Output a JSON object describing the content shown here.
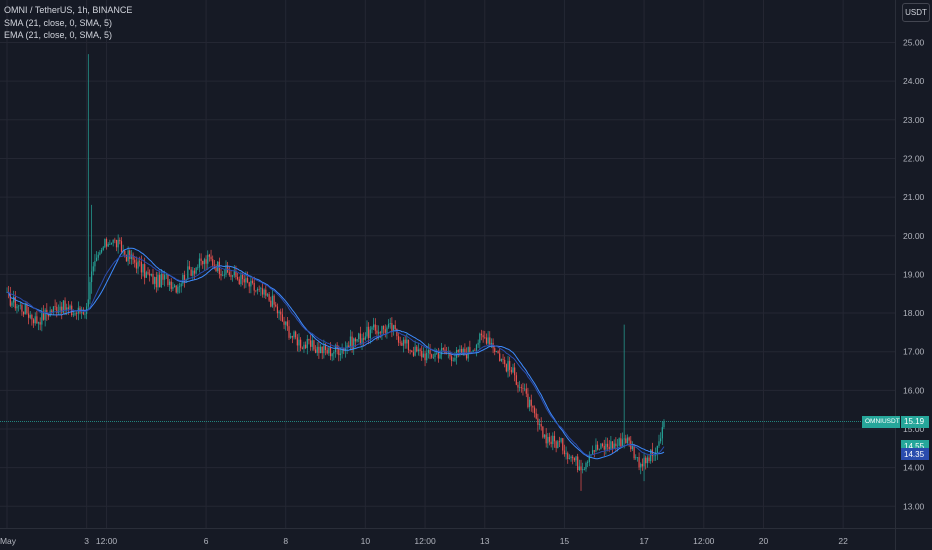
{
  "legend": {
    "symbol": "OMNI / TetherUS, 1h, BINANCE",
    "sma": "SMA (21, close, 0, SMA, 5)",
    "ema": "EMA (21, close, 0, SMA, 5)"
  },
  "currency_button": "USDT",
  "price_tags": {
    "symbol_label": "OMNIUSDT",
    "last_price": "15.19",
    "sma_value": "14.55",
    "ema_value": "14.35"
  },
  "colors": {
    "background": "#161a25",
    "grid": "#242733",
    "up": "#26a69a",
    "down": "#ef5350",
    "sma": "#3d8bfd",
    "ema": "#2a4cad",
    "last_line": "#26a69a"
  },
  "chart_data": {
    "type": "candlestick",
    "symbol": "OMNIUSDT",
    "interval": "1h",
    "exchange": "BINANCE",
    "y_ticks": [
      25.0,
      24.0,
      23.0,
      22.0,
      21.0,
      20.0,
      19.0,
      18.0,
      17.0,
      16.0,
      15.0,
      14.0,
      13.0
    ],
    "ylim": [
      12.3,
      25.6
    ],
    "x_ticks": [
      {
        "label": "May",
        "index": 0
      },
      {
        "label": "3",
        "index": 48
      },
      {
        "label": "12:00",
        "index": 60
      },
      {
        "label": "6",
        "index": 120
      },
      {
        "label": "8",
        "index": 168
      },
      {
        "label": "10",
        "index": 216
      },
      {
        "label": "12:00",
        "index": 252
      },
      {
        "label": "13",
        "index": 288
      },
      {
        "label": "15",
        "index": 336
      },
      {
        "label": "17",
        "index": 384
      },
      {
        "label": "12:00",
        "index": 420
      },
      {
        "label": "20",
        "index": 456
      },
      {
        "label": "22",
        "index": 504
      }
    ],
    "last_price": 15.19,
    "sma_last": 14.55,
    "ema_last": 14.35,
    "price_path": [
      [
        0,
        18.4
      ],
      [
        10,
        18.1
      ],
      [
        18,
        17.8
      ],
      [
        24,
        18.0
      ],
      [
        32,
        18.2
      ],
      [
        40,
        18.0
      ],
      [
        48,
        18.1
      ],
      [
        50,
        18.9
      ],
      [
        54,
        19.3
      ],
      [
        58,
        19.7
      ],
      [
        62,
        19.9
      ],
      [
        66,
        19.8
      ],
      [
        72,
        19.5
      ],
      [
        78,
        19.3
      ],
      [
        84,
        19.0
      ],
      [
        90,
        18.8
      ],
      [
        96,
        18.9
      ],
      [
        102,
        18.7
      ],
      [
        110,
        19.1
      ],
      [
        118,
        19.3
      ],
      [
        122,
        19.4
      ],
      [
        130,
        19.1
      ],
      [
        140,
        18.9
      ],
      [
        150,
        18.6
      ],
      [
        160,
        18.3
      ],
      [
        166,
        17.8
      ],
      [
        172,
        17.4
      ],
      [
        178,
        17.2
      ],
      [
        186,
        17.1
      ],
      [
        194,
        17.0
      ],
      [
        202,
        17.1
      ],
      [
        210,
        17.3
      ],
      [
        218,
        17.5
      ],
      [
        226,
        17.6
      ],
      [
        232,
        17.6
      ],
      [
        240,
        17.2
      ],
      [
        246,
        17.0
      ],
      [
        254,
        16.9
      ],
      [
        262,
        17.0
      ],
      [
        270,
        16.9
      ],
      [
        278,
        17.0
      ],
      [
        284,
        17.3
      ],
      [
        290,
        17.4
      ],
      [
        294,
        17.1
      ],
      [
        298,
        16.8
      ],
      [
        304,
        16.5
      ],
      [
        310,
        16.1
      ],
      [
        316,
        15.5
      ],
      [
        322,
        14.9
      ],
      [
        328,
        14.7
      ],
      [
        334,
        14.6
      ],
      [
        340,
        14.3
      ],
      [
        344,
        14.1
      ],
      [
        348,
        14.1
      ],
      [
        352,
        14.5
      ],
      [
        358,
        14.5
      ],
      [
        364,
        14.6
      ],
      [
        368,
        14.6
      ],
      [
        372,
        14.8
      ],
      [
        376,
        14.6
      ],
      [
        380,
        14.2
      ],
      [
        384,
        14.1
      ],
      [
        388,
        14.3
      ],
      [
        392,
        14.4
      ],
      [
        394,
        14.8
      ],
      [
        396,
        15.19
      ]
    ],
    "spikes": [
      {
        "index": 49,
        "high": 24.7,
        "low": 18.1
      },
      {
        "index": 51,
        "high": 20.8,
        "low": 18.5
      },
      {
        "index": 372,
        "high": 17.7,
        "low": 14.5
      },
      {
        "index": 384,
        "high": 14.4,
        "low": 13.65
      },
      {
        "index": 346,
        "high": 14.2,
        "low": 13.4
      }
    ]
  }
}
